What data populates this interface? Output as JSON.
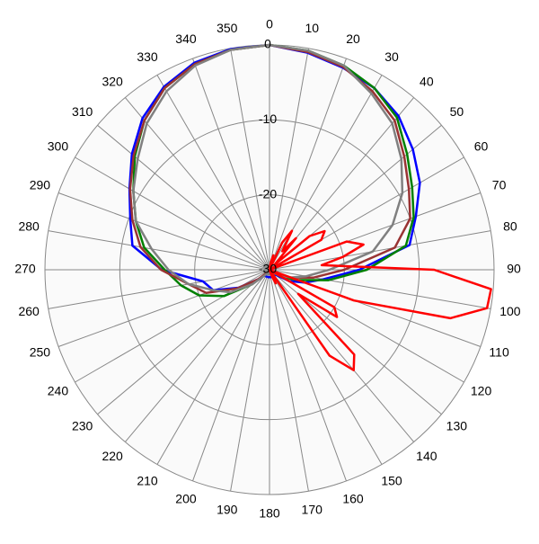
{
  "chart_data": {
    "type": "polar",
    "rlim": [
      -30,
      0
    ],
    "rticks": [
      -30,
      -20,
      -10,
      0
    ],
    "thetaticks": [
      0,
      10,
      20,
      30,
      40,
      50,
      60,
      70,
      80,
      90,
      100,
      110,
      120,
      130,
      140,
      150,
      160,
      170,
      180,
      190,
      200,
      210,
      220,
      230,
      240,
      250,
      260,
      270,
      280,
      290,
      300,
      310,
      320,
      330,
      340,
      350
    ],
    "grid": true,
    "series": [
      {
        "color": "#0000ff",
        "theta": [
          0,
          10,
          20,
          30,
          40,
          50,
          60,
          70,
          80,
          90,
          100,
          110,
          120,
          130,
          140,
          150,
          160,
          170,
          180,
          190,
          200,
          210,
          220,
          230,
          240,
          250,
          260,
          270,
          280,
          290,
          300,
          310,
          320,
          330,
          340,
          350
        ],
        "values": [
          0,
          -0.6,
          -1.3,
          -2,
          -3.2,
          -5,
          -6.8,
          -9.2,
          -11,
          -18,
          -22.7,
          -25,
          -27,
          -29,
          -29,
          -29,
          -29,
          -29,
          -29,
          -29,
          -29,
          -29,
          -29,
          -28,
          -25.2,
          -22,
          -21,
          -15.6,
          -11.4,
          -10.2,
          -8.4,
          -6,
          -3.6,
          -1.8,
          -0.6,
          -0.1
        ]
      },
      {
        "color": "#008000",
        "theta": [
          0,
          10,
          20,
          30,
          40,
          50,
          60,
          70,
          80,
          90,
          100,
          110,
          120,
          130,
          140,
          150,
          160,
          170,
          180,
          190,
          200,
          210,
          220,
          230,
          240,
          250,
          260,
          270,
          280,
          290,
          300,
          310,
          320,
          330,
          340,
          350
        ],
        "values": [
          0,
          -0.3,
          -1,
          -2,
          -3.5,
          -6,
          -8,
          -9.5,
          -11.5,
          -17,
          -22,
          -26,
          -28,
          -29.5,
          -29.5,
          -29.5,
          -29.5,
          -29.5,
          -29.5,
          -29.5,
          -29.5,
          -29.5,
          -29.5,
          -27,
          -23,
          -20,
          -18,
          -16,
          -13,
          -11,
          -9,
          -6.5,
          -4,
          -2,
          -0.8,
          -0.2
        ]
      },
      {
        "color": "#993333",
        "theta": [
          0,
          10,
          20,
          30,
          40,
          50,
          60,
          70,
          80,
          90,
          100,
          110,
          120,
          130,
          140,
          150,
          160,
          170,
          180,
          190,
          200,
          210,
          220,
          230,
          240,
          250,
          260,
          270,
          280,
          290,
          300,
          310,
          320,
          330,
          340,
          350
        ],
        "values": [
          0,
          -0.5,
          -1.2,
          -2.5,
          -4,
          -6.5,
          -8.5,
          -10,
          -13,
          -20,
          -24,
          -27,
          -28.5,
          -29.5,
          -29.5,
          -29.5,
          -29.5,
          -29.5,
          -29.5,
          -29.5,
          -29.5,
          -29.5,
          -29.5,
          -28,
          -25,
          -21,
          -19,
          -15.5,
          -12.5,
          -10.5,
          -8.5,
          -6.3,
          -4,
          -2,
          -0.8,
          -0.2
        ]
      },
      {
        "color": "#808080",
        "theta": [
          0,
          10,
          20,
          30,
          40,
          50,
          60,
          70,
          80,
          90,
          100,
          110,
          120,
          130,
          140,
          150,
          160,
          170,
          180,
          190,
          200,
          210,
          220,
          230,
          240,
          250,
          260,
          270,
          280,
          290,
          300,
          310,
          320,
          330,
          340,
          350
        ],
        "values": [
          0,
          -0.3,
          -1,
          -2.8,
          -4.5,
          -7,
          -9.5,
          -12.5,
          -16,
          -22,
          -25,
          -27,
          -28.5,
          -29.5,
          -29.5,
          -29.5,
          -29.5,
          -29.5,
          -29.5,
          -29.5,
          -29.5,
          -29.5,
          -29,
          -27,
          -24,
          -22,
          -19,
          -16.5,
          -14,
          -11,
          -9,
          -7,
          -4.5,
          -2.5,
          -1,
          -0.2
        ]
      },
      {
        "color": "#ff0000",
        "theta": [
          0,
          5,
          10,
          15,
          20,
          25,
          30,
          35,
          40,
          45,
          50,
          55,
          60,
          65,
          70,
          75,
          80,
          85,
          90,
          95,
          100,
          105,
          110,
          115,
          120,
          125,
          130,
          135,
          140,
          145,
          150,
          155,
          160,
          165,
          170,
          175,
          180,
          190,
          200,
          210,
          220,
          230,
          240,
          250,
          260,
          270,
          280,
          290,
          300,
          310,
          320,
          330,
          340,
          350
        ],
        "values": [
          -30,
          -30,
          -29,
          -28,
          -30,
          -26,
          -24,
          -27,
          -24.5,
          -29,
          -23,
          -21,
          -22,
          -30,
          -19,
          -17,
          -20,
          -23,
          -8,
          -0.3,
          -0.5,
          -5,
          -18,
          -30,
          -20,
          -19,
          -25,
          -14,
          -12.5,
          -16,
          -30,
          -28,
          -29,
          -30,
          -30,
          -30,
          -30,
          -30,
          -30,
          -30,
          -30,
          -30,
          -30,
          -30,
          -30,
          -30,
          -30,
          -30,
          -30,
          -30,
          -30,
          -30,
          -30,
          -30
        ]
      }
    ]
  }
}
